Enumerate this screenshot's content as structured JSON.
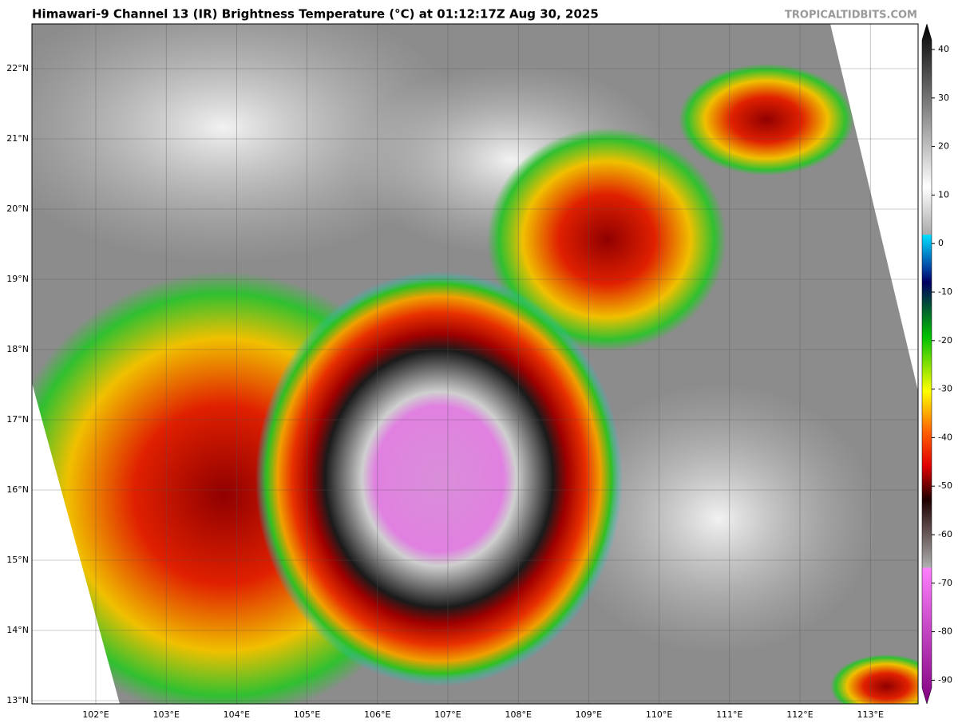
{
  "header": {
    "title": "Himawari-9 Channel 13 (IR) Brightness Temperature (°C) at 01:12:17Z Aug 30, 2025",
    "watermark": "TROPICALTIDBITS.COM"
  },
  "map": {
    "lat_labels": [
      "22°N",
      "21°N",
      "20°N",
      "19°N",
      "18°N",
      "17°N",
      "16°N",
      "15°N",
      "14°N",
      "13°N"
    ],
    "lon_labels": [
      "102°E",
      "103°E",
      "104°E",
      "105°E",
      "106°E",
      "107°E",
      "108°E",
      "109°E",
      "110°E",
      "111°E",
      "112°E",
      "113°E"
    ]
  },
  "colorbar": {
    "ticks": [
      40,
      30,
      20,
      10,
      0,
      -10,
      -20,
      -30,
      -40,
      -50,
      -60,
      -70,
      -80,
      -90
    ]
  }
}
